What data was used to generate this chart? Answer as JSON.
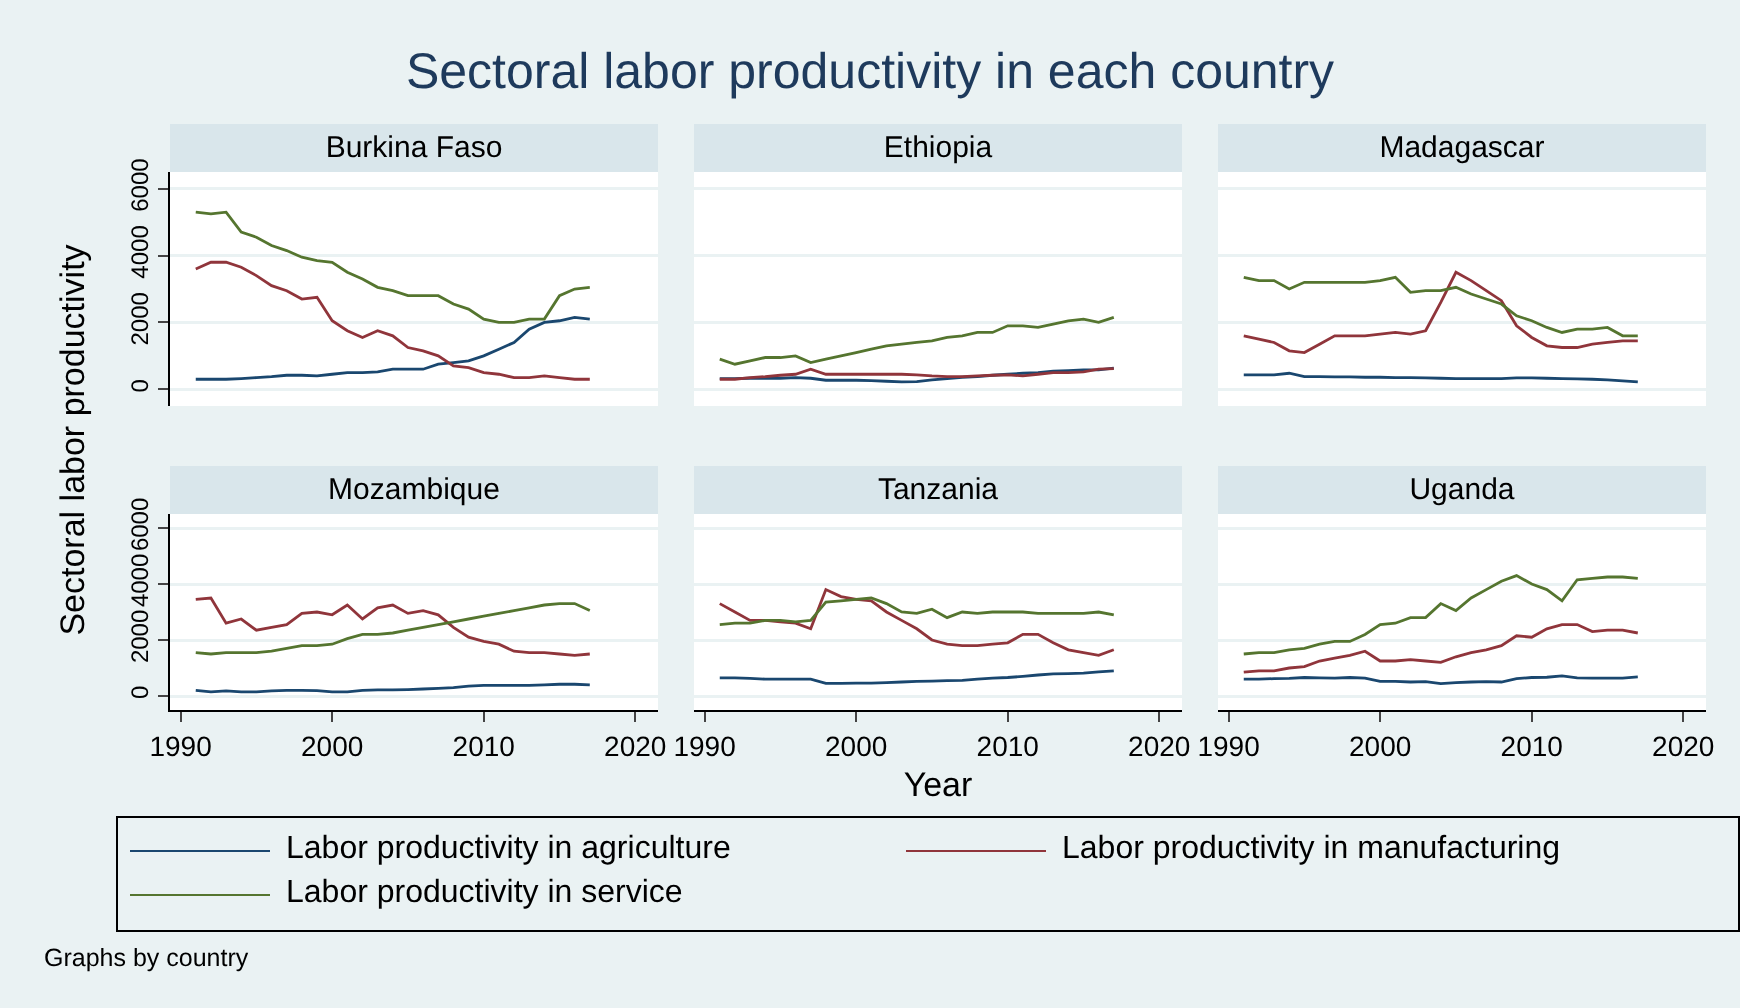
{
  "chart_data": [
    {
      "type": "line",
      "title": "Burkina Faso",
      "ylabel": "Sectoral labor productivity",
      "annotations": [
        "Sectoral labor productivity in each country",
        "Graphs by country"
      ],
      "legend": "bottom",
      "grid": "y",
      "tick_labels": "y",
      "marker": "none",
      "line_style": "solid",
      "xlim": [
        1989.3,
        2021.5
      ],
      "xticks": [
        1990,
        2000,
        2010,
        2020
      ],
      "ylim": [
        -500,
        6500
      ],
      "yticks": [
        0,
        2000,
        4000,
        6000
      ],
      "x": [
        1991,
        1992,
        1993,
        1994,
        1995,
        1996,
        1997,
        1998,
        1999,
        2000,
        2001,
        2002,
        2003,
        2004,
        2005,
        2006,
        2007,
        2008,
        2009,
        2010,
        2011,
        2012,
        2013,
        2014,
        2015,
        2016,
        2017
      ],
      "series": [
        {
          "name": "Labor productivity in agriculture",
          "color": "#1a476f",
          "values": [
            300,
            300,
            300,
            320,
            350,
            380,
            420,
            420,
            400,
            450,
            500,
            500,
            520,
            600,
            600,
            600,
            750,
            800,
            850,
            1000,
            1200,
            1400,
            1800,
            2000,
            2050,
            2150,
            2100
          ]
        },
        {
          "name": "Labor productivity in manufacturing",
          "color": "#90353b",
          "values": [
            3600,
            3800,
            3800,
            3650,
            3400,
            3100,
            2950,
            2700,
            2750,
            2050,
            1750,
            1550,
            1750,
            1600,
            1250,
            1150,
            1000,
            700,
            650,
            500,
            450,
            350,
            350,
            400,
            350,
            300,
            300
          ]
        },
        {
          "name": "Labor productivity in service",
          "color": "#55752f",
          "values": [
            5300,
            5250,
            5300,
            4700,
            4550,
            4300,
            4150,
            3950,
            3850,
            3800,
            3500,
            3300,
            3050,
            2950,
            2800,
            2800,
            2800,
            2550,
            2400,
            2100,
            2000,
            2000,
            2100,
            2100,
            2800,
            3000,
            3050
          ]
        }
      ]
    },
    {
      "type": "line",
      "title": "Ethiopia",
      "grid": "y",
      "tick_labels": false,
      "marker": "none",
      "line_style": "solid",
      "xlim": [
        1989.3,
        2021.5
      ],
      "xticks": [
        1990,
        2000,
        2010,
        2020
      ],
      "ylim": [
        -500,
        6500
      ],
      "yticks": [
        0,
        2000,
        4000,
        6000
      ],
      "x": [
        1991,
        1992,
        1993,
        1994,
        1995,
        1996,
        1997,
        1998,
        1999,
        2000,
        2001,
        2002,
        2003,
        2004,
        2005,
        2006,
        2007,
        2008,
        2009,
        2010,
        2011,
        2012,
        2013,
        2014,
        2015,
        2016,
        2017
      ],
      "series": [
        {
          "color": "#1a476f",
          "values": [
            320,
            320,
            330,
            330,
            330,
            350,
            330,
            270,
            270,
            270,
            260,
            240,
            220,
            230,
            280,
            320,
            360,
            380,
            420,
            450,
            480,
            500,
            540,
            560,
            580,
            580,
            630
          ]
        },
        {
          "color": "#90353b",
          "values": [
            300,
            300,
            350,
            380,
            420,
            450,
            600,
            450,
            450,
            450,
            450,
            450,
            450,
            430,
            400,
            380,
            380,
            400,
            420,
            430,
            400,
            450,
            500,
            500,
            520,
            600,
            620
          ]
        },
        {
          "color": "#55752f",
          "values": [
            900,
            750,
            850,
            950,
            950,
            1000,
            800,
            900,
            1000,
            1100,
            1200,
            1300,
            1350,
            1400,
            1450,
            1550,
            1600,
            1700,
            1700,
            1900,
            1900,
            1850,
            1950,
            2050,
            2100,
            2000,
            2150
          ]
        }
      ]
    },
    {
      "type": "line",
      "title": "Madagascar",
      "grid": "y",
      "tick_labels": false,
      "marker": "none",
      "line_style": "solid",
      "xlim": [
        1989.3,
        2021.5
      ],
      "xticks": [
        1990,
        2000,
        2010,
        2020
      ],
      "ylim": [
        -500,
        6500
      ],
      "yticks": [
        0,
        2000,
        4000,
        6000
      ],
      "x": [
        1991,
        1992,
        1993,
        1994,
        1995,
        1996,
        1997,
        1998,
        1999,
        2000,
        2001,
        2002,
        2003,
        2004,
        2005,
        2006,
        2007,
        2008,
        2009,
        2010,
        2011,
        2012,
        2013,
        2014,
        2015,
        2016,
        2017
      ],
      "series": [
        {
          "color": "#1a476f",
          "values": [
            430,
            430,
            430,
            480,
            380,
            380,
            370,
            370,
            360,
            360,
            350,
            350,
            340,
            330,
            320,
            320,
            320,
            320,
            340,
            340,
            330,
            320,
            310,
            300,
            280,
            250,
            220
          ]
        },
        {
          "color": "#90353b",
          "values": [
            1600,
            1500,
            1400,
            1150,
            1100,
            1350,
            1600,
            1600,
            1600,
            1650,
            1700,
            1650,
            1750,
            2600,
            3500,
            3250,
            2950,
            2650,
            1900,
            1550,
            1300,
            1250,
            1250,
            1350,
            1400,
            1450,
            1450
          ]
        },
        {
          "color": "#55752f",
          "values": [
            3350,
            3250,
            3250,
            3000,
            3200,
            3200,
            3200,
            3200,
            3200,
            3250,
            3350,
            2900,
            2950,
            2950,
            3050,
            2850,
            2700,
            2550,
            2200,
            2050,
            1850,
            1700,
            1800,
            1800,
            1850,
            1600,
            1600
          ]
        }
      ]
    },
    {
      "type": "line",
      "title": "Mozambique",
      "grid": "y",
      "marker": "none",
      "line_style": "solid",
      "xlim": [
        1989.3,
        2021.5
      ],
      "xticks": [
        1990,
        2000,
        2010,
        2020
      ],
      "ylim": [
        -500,
        6500
      ],
      "yticks": [
        0,
        2000,
        4000,
        6000
      ],
      "x": [
        1991,
        1992,
        1993,
        1994,
        1995,
        1996,
        1997,
        1998,
        1999,
        2000,
        2001,
        2002,
        2003,
        2004,
        2005,
        2006,
        2007,
        2008,
        2009,
        2010,
        2011,
        2012,
        2013,
        2014,
        2015,
        2016,
        2017
      ],
      "series": [
        {
          "color": "#1a476f",
          "values": [
            200,
            150,
            180,
            150,
            150,
            180,
            200,
            200,
            190,
            150,
            150,
            200,
            220,
            220,
            230,
            250,
            270,
            300,
            350,
            380,
            380,
            380,
            380,
            400,
            420,
            420,
            400
          ]
        },
        {
          "color": "#90353b",
          "values": [
            3450,
            3500,
            2600,
            2750,
            2350,
            2450,
            2550,
            2950,
            3000,
            2900,
            3250,
            2750,
            3150,
            3250,
            2950,
            3050,
            2900,
            2450,
            2100,
            1950,
            1850,
            1600,
            1550,
            1550,
            1500,
            1450,
            1500
          ]
        },
        {
          "color": "#55752f",
          "values": [
            1550,
            1500,
            1550,
            1550,
            1550,
            1600,
            1700,
            1800,
            1800,
            1850,
            2050,
            2200,
            2200,
            2250,
            2350,
            2450,
            2550,
            2650,
            2750,
            2850,
            2950,
            3050,
            3150,
            3250,
            3300,
            3300,
            3050
          ]
        }
      ]
    },
    {
      "type": "line",
      "title": "Tanzania",
      "xlabel": "Year",
      "grid": "y",
      "tick_labels": "x",
      "marker": "none",
      "line_style": "solid",
      "xlim": [
        1989.3,
        2021.5
      ],
      "xticks": [
        1990,
        2000,
        2010,
        2020
      ],
      "ylim": [
        -500,
        6500
      ],
      "yticks": [
        0,
        2000,
        4000,
        6000
      ],
      "x": [
        1991,
        1992,
        1993,
        1994,
        1995,
        1996,
        1997,
        1998,
        1999,
        2000,
        2001,
        2002,
        2003,
        2004,
        2005,
        2006,
        2007,
        2008,
        2009,
        2010,
        2011,
        2012,
        2013,
        2014,
        2015,
        2016,
        2017
      ],
      "series": [
        {
          "color": "#1a476f",
          "values": [
            650,
            650,
            630,
            600,
            600,
            600,
            600,
            450,
            450,
            460,
            460,
            480,
            500,
            520,
            530,
            550,
            560,
            600,
            640,
            660,
            700,
            750,
            790,
            800,
            820,
            860,
            900
          ]
        },
        {
          "color": "#90353b",
          "values": [
            3300,
            3000,
            2700,
            2700,
            2650,
            2600,
            2400,
            3800,
            3550,
            3450,
            3400,
            3000,
            2700,
            2400,
            2000,
            1850,
            1800,
            1800,
            1850,
            1900,
            2200,
            2200,
            1900,
            1650,
            1550,
            1450,
            1650
          ]
        },
        {
          "color": "#55752f",
          "values": [
            2550,
            2600,
            2600,
            2700,
            2700,
            2650,
            2700,
            3350,
            3400,
            3450,
            3500,
            3300,
            3000,
            2950,
            3100,
            2800,
            3000,
            2950,
            3000,
            3000,
            3000,
            2950,
            2950,
            2950,
            2950,
            3000,
            2900
          ]
        }
      ]
    },
    {
      "type": "line",
      "title": "Uganda",
      "grid": "y",
      "tick_labels": "x",
      "marker": "none",
      "line_style": "solid",
      "xlim": [
        1989.3,
        2021.5
      ],
      "xticks": [
        1990,
        2000,
        2010,
        2020
      ],
      "ylim": [
        -500,
        6500
      ],
      "yticks": [
        0,
        2000,
        4000,
        6000
      ],
      "x": [
        1991,
        1992,
        1993,
        1994,
        1995,
        1996,
        1997,
        1998,
        1999,
        2000,
        2001,
        2002,
        2003,
        2004,
        2005,
        2006,
        2007,
        2008,
        2009,
        2010,
        2011,
        2012,
        2013,
        2014,
        2015,
        2016,
        2017
      ],
      "series": [
        {
          "color": "#1a476f",
          "values": [
            600,
            600,
            620,
            630,
            660,
            650,
            640,
            660,
            640,
            520,
            520,
            500,
            510,
            440,
            480,
            500,
            510,
            500,
            620,
            660,
            670,
            720,
            650,
            640,
            640,
            640,
            680
          ]
        },
        {
          "color": "#90353b",
          "values": [
            850,
            900,
            900,
            1000,
            1050,
            1250,
            1350,
            1450,
            1600,
            1250,
            1250,
            1300,
            1250,
            1200,
            1400,
            1550,
            1650,
            1800,
            2150,
            2100,
            2400,
            2550,
            2550,
            2300,
            2350,
            2350,
            2250
          ]
        },
        {
          "color": "#55752f",
          "values": [
            1500,
            1550,
            1550,
            1650,
            1700,
            1850,
            1950,
            1950,
            2200,
            2550,
            2600,
            2800,
            2800,
            3300,
            3050,
            3500,
            3800,
            4100,
            4300,
            4000,
            3800,
            3400,
            4150,
            4200,
            4250,
            4250,
            4200
          ]
        }
      ]
    }
  ]
}
